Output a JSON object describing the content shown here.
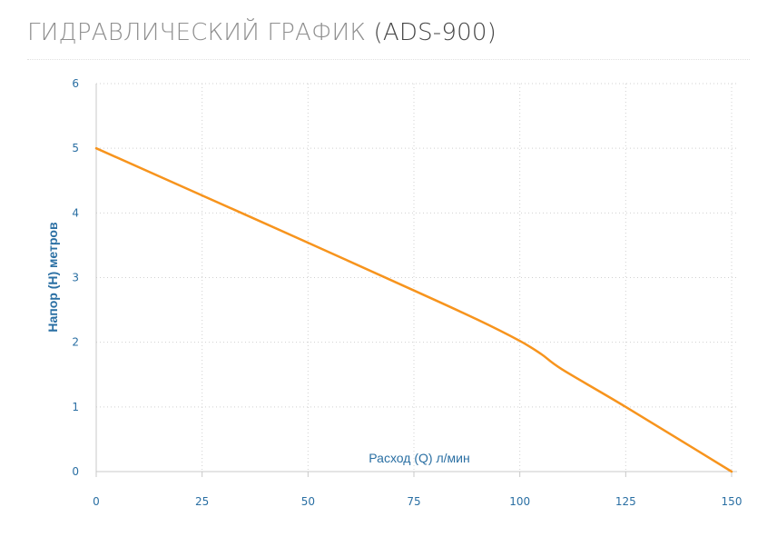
{
  "header": {
    "title": "ГИДРАВЛИЧЕСКИЙ ГРАФИК",
    "model": "(ADS-900)"
  },
  "colors": {
    "curve": "#f7941d",
    "axis_text": "#2a6fa3",
    "grid": "#d0d0d0",
    "title_gray": "#8f8f8f",
    "title_dark": "#454545"
  },
  "chart_data": {
    "type": "line",
    "xlabel": "Расход (Q) л/мин",
    "ylabel": "Напор (H) метров",
    "xlim": [
      0,
      150
    ],
    "ylim": [
      0,
      6
    ],
    "x_ticks": [
      "0",
      "25",
      "50",
      "75",
      "100",
      "125",
      "150"
    ],
    "y_ticks": [
      "0",
      "1",
      "2",
      "3",
      "4",
      "5",
      "6"
    ],
    "grid": true,
    "series": [
      {
        "x": [
          0,
          25,
          50,
          75,
          90,
          100,
          105,
          110,
          125,
          150
        ],
        "y": [
          5.0,
          4.27,
          3.54,
          2.8,
          2.35,
          2.02,
          1.82,
          1.58,
          1.0,
          0.0
        ]
      }
    ]
  }
}
